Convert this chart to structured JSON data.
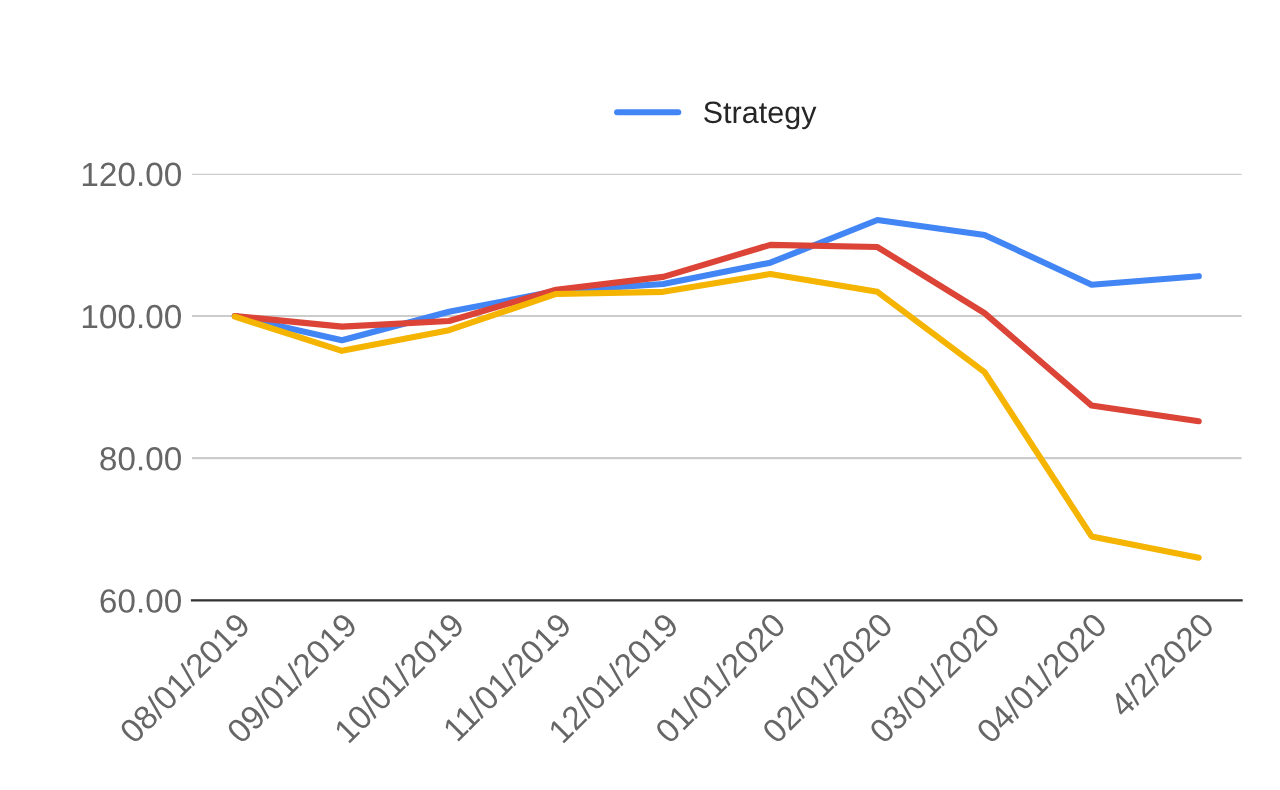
{
  "chart_data": {
    "type": "line",
    "categories": [
      "08/01/2019",
      "09/01/2019",
      "10/01/2019",
      "11/01/2019",
      "12/01/2019",
      "01/01/2020",
      "02/01/2020",
      "03/01/2020",
      "04/01/2020",
      "4/2/2020"
    ],
    "series": [
      {
        "name": "Strategy",
        "color": "#4285f4",
        "values": [
          100,
          96.6,
          100.6,
          103.5,
          104.5,
          107.5,
          113.5,
          111.4,
          104.4,
          105.6
        ]
      },
      {
        "color": "#db4437",
        "values": [
          100,
          98.5,
          99.3,
          103.7,
          105.5,
          110,
          109.7,
          100.4,
          87.4,
          85.2
        ]
      },
      {
        "color": "#f4b400",
        "values": [
          99.9,
          95.1,
          98,
          103.1,
          103.4,
          105.9,
          103.4,
          92.1,
          69,
          66
        ]
      }
    ],
    "ylim": [
      60,
      120
    ],
    "yticks": [
      {
        "value": 60,
        "label": "60.00"
      },
      {
        "value": 80,
        "label": "80.00"
      },
      {
        "value": 100,
        "label": "100.00"
      },
      {
        "value": 120,
        "label": "120.00"
      }
    ],
    "grid": "y",
    "legend": "top",
    "marker": "none",
    "line_style": "solid"
  }
}
